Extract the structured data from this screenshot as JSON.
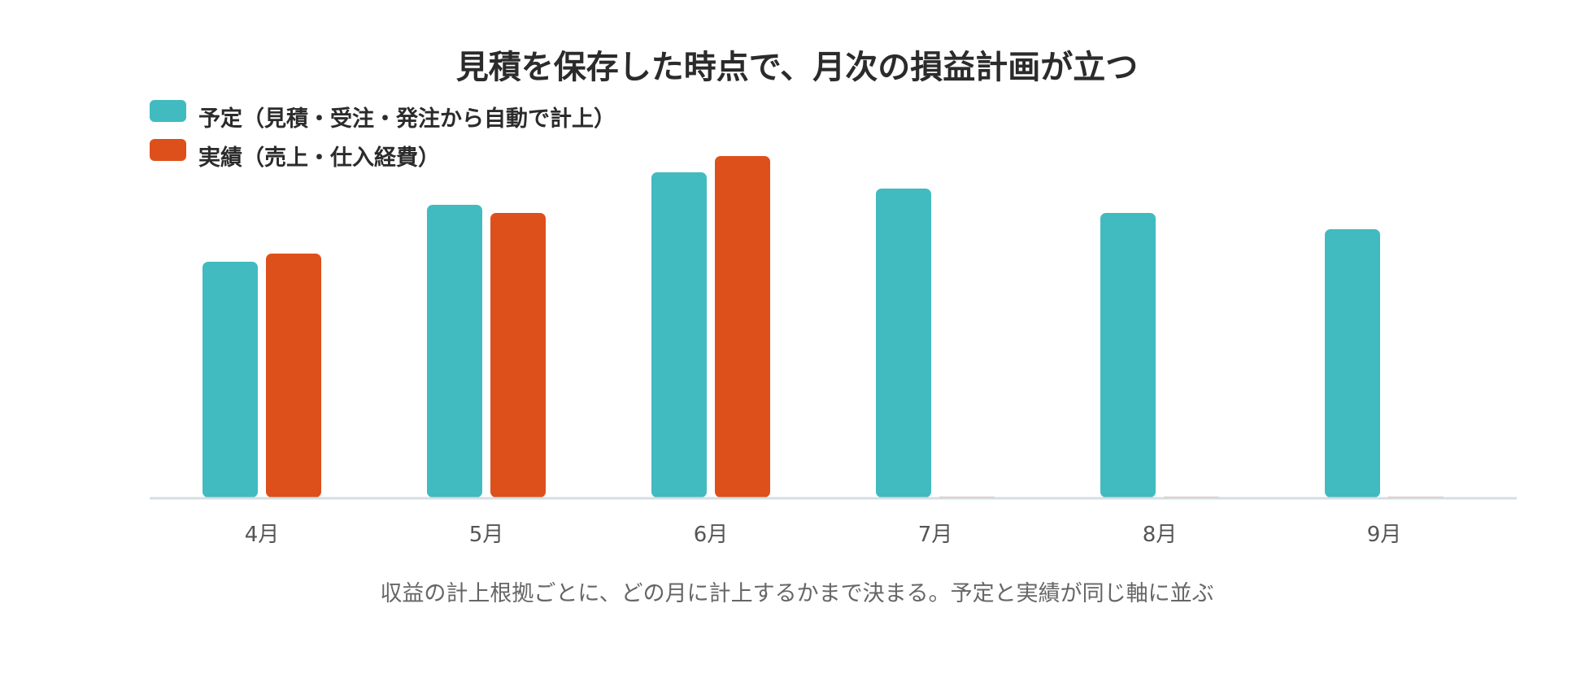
{
  "chart_data": {
    "type": "bar",
    "title": "見積を保存した時点で、月次の損益計画が立つ",
    "caption": "収益の計上根拠ごとに、どの月に計上するかまで決まる。予定と実績が同じ軸に並ぶ",
    "categories": [
      "4月",
      "5月",
      "6月",
      "7月",
      "8月",
      "9月"
    ],
    "series": [
      {
        "name": "予定（見積・受注・発注から自動で計上）",
        "color": "#41BBC0",
        "values": [
          58,
          72,
          80,
          76,
          70,
          66
        ]
      },
      {
        "name": "実績（売上・仕入経費）",
        "color": "#DE501B",
        "values": [
          60,
          70,
          84,
          0,
          0,
          0
        ]
      }
    ],
    "ylim": [
      0,
      100
    ],
    "grid": false,
    "legend_position": "top-left",
    "axis_color": "#D5DEE3"
  }
}
